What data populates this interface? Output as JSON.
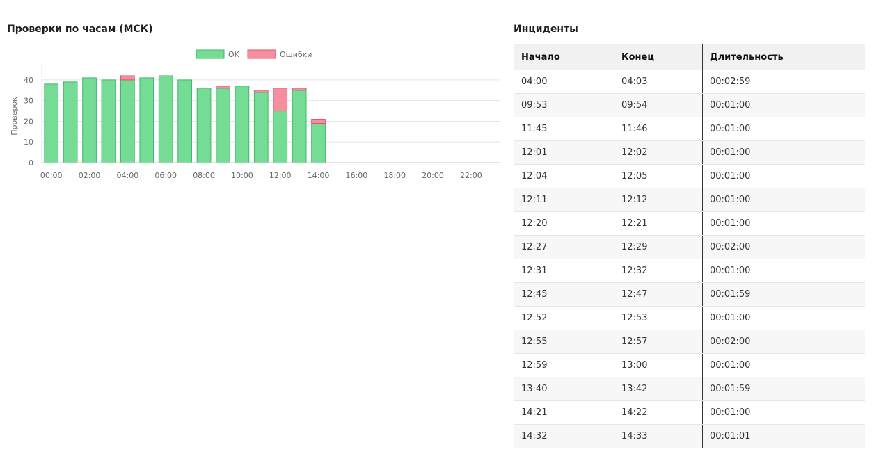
{
  "chart_title": "Проверки по часам (МСК)",
  "incidents_title": "Инциденты",
  "colors": {
    "ok_fill": "#74dc95",
    "ok_stroke": "#3fb968",
    "err_fill": "#f58ea0",
    "err_stroke": "#e2556e",
    "grid": "#e5e5e5",
    "axis_text": "#666666"
  },
  "chart_data": {
    "type": "bar",
    "stacked": true,
    "title": "Проверки по часам (МСК)",
    "xlabel": "",
    "ylabel": "Проверок",
    "ylim": [
      0,
      45
    ],
    "yticks": [
      0,
      10,
      20,
      30,
      40
    ],
    "grid": true,
    "legend_position": "top-center",
    "x_tick_labels": [
      "00:00",
      "02:00",
      "04:00",
      "06:00",
      "08:00",
      "10:00",
      "12:00",
      "14:00",
      "16:00",
      "18:00",
      "20:00",
      "22:00"
    ],
    "categories": [
      "00:00",
      "01:00",
      "02:00",
      "03:00",
      "04:00",
      "05:00",
      "06:00",
      "07:00",
      "08:00",
      "09:00",
      "10:00",
      "11:00",
      "12:00",
      "13:00",
      "14:00",
      "15:00",
      "16:00",
      "17:00",
      "18:00",
      "19:00",
      "20:00",
      "21:00",
      "22:00",
      "23:00"
    ],
    "series": [
      {
        "name": "OK",
        "color": "#74dc95",
        "values": [
          38,
          39,
          41,
          40,
          40,
          41,
          42,
          40,
          36,
          36,
          37,
          34,
          25,
          35,
          19,
          null,
          null,
          null,
          null,
          null,
          null,
          null,
          null,
          null
        ]
      },
      {
        "name": "Ошибки",
        "color": "#f58ea0",
        "values": [
          0,
          0,
          0,
          0,
          2,
          0,
          0,
          0,
          0,
          1,
          0,
          1,
          11,
          1,
          2,
          null,
          null,
          null,
          null,
          null,
          null,
          null,
          null,
          null
        ]
      }
    ]
  },
  "incidents": {
    "columns": [
      "Начало",
      "Конец",
      "Длительность"
    ],
    "rows": [
      [
        "04:00",
        "04:03",
        "00:02:59"
      ],
      [
        "09:53",
        "09:54",
        "00:01:00"
      ],
      [
        "11:45",
        "11:46",
        "00:01:00"
      ],
      [
        "12:01",
        "12:02",
        "00:01:00"
      ],
      [
        "12:04",
        "12:05",
        "00:01:00"
      ],
      [
        "12:11",
        "12:12",
        "00:01:00"
      ],
      [
        "12:20",
        "12:21",
        "00:01:00"
      ],
      [
        "12:27",
        "12:29",
        "00:02:00"
      ],
      [
        "12:31",
        "12:32",
        "00:01:00"
      ],
      [
        "12:45",
        "12:47",
        "00:01:59"
      ],
      [
        "12:52",
        "12:53",
        "00:01:00"
      ],
      [
        "12:55",
        "12:57",
        "00:02:00"
      ],
      [
        "12:59",
        "13:00",
        "00:01:00"
      ],
      [
        "13:40",
        "13:42",
        "00:01:59"
      ],
      [
        "14:21",
        "14:22",
        "00:01:00"
      ],
      [
        "14:32",
        "14:33",
        "00:01:01"
      ]
    ]
  }
}
